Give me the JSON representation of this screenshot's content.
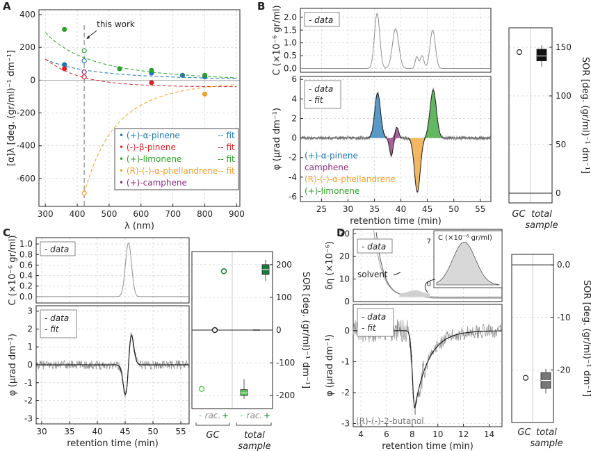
{
  "colors": {
    "a_pinene": "#1f77b4",
    "b_pinene": "#d62728",
    "limonene": "#2ca02c",
    "phellandrene": "#f0a030",
    "camphene": "#8e2b7a",
    "data_trace": "#909090",
    "fit_trace": "#222222",
    "box_dark": "#111111",
    "box_gray": "#777777",
    "green_dark": "#1d7a3a",
    "green_light": "#5cc55c"
  },
  "panels": {
    "A": {
      "letter": "A"
    },
    "B": {
      "letter": "B"
    },
    "C": {
      "letter": "C"
    },
    "D": {
      "letter": "D"
    }
  },
  "chart_data": [
    {
      "panel": "A",
      "type": "scatter",
      "xlabel": "λ (nm)",
      "ylabel": "[α]λ [deg. (gr/ml)⁻¹ dm⁻¹]",
      "xlim": [
        280,
        910
      ],
      "ylim": [
        -770,
        430
      ],
      "xticks": [
        300,
        400,
        500,
        600,
        700,
        800,
        900
      ],
      "yticks": [
        -600,
        -400,
        -200,
        0,
        200,
        400
      ],
      "grid": true,
      "annotation": "this work",
      "annotation_x": 422,
      "legend_position": "bottom-right",
      "legend_fit_label": "-- fit",
      "series": [
        {
          "name": "(+)-α-pinene",
          "color_key": "a_pinene",
          "fit": [
            422,
            300
          ],
          "points": [
            [
              360,
              95
            ],
            [
              422,
              118
            ],
            [
              633,
              44
            ],
            [
              730,
              30
            ],
            [
              800,
              20
            ]
          ],
          "open_index": 1
        },
        {
          "name": "(-)-β-pinene",
          "color_key": "b_pinene",
          "fit": [
            422,
            200
          ],
          "points": [
            [
              360,
              70
            ],
            [
              422,
              20
            ],
            [
              633,
              -15
            ]
          ],
          "open_index": 1
        },
        {
          "name": "(+)-limonene",
          "color_key": "limonene",
          "fit": [
            422,
            420
          ],
          "points": [
            [
              360,
              310
            ],
            [
              422,
              180
            ],
            [
              533,
              70
            ],
            [
              633,
              60
            ],
            [
              800,
              30
            ]
          ],
          "open_index": 1
        },
        {
          "name": "(R)-(-)-α-phellandrene",
          "color_key": "phellandrene",
          "fit": [
            422,
            300
          ],
          "points": [
            [
              422,
              -690
            ],
            [
              800,
              -85
            ]
          ],
          "open_index": 0
        },
        {
          "name": "(+)-camphene",
          "color_key": "camphene",
          "points": [
            [
              422,
              50
            ]
          ],
          "open_index": 0
        }
      ]
    },
    {
      "panel": "B-top",
      "type": "line",
      "ylabel": "C (×10⁻⁶ gr/ml)",
      "xlim": [
        21,
        57
      ],
      "ylim": [
        -0.15,
        2.35
      ],
      "yticks": [
        0.0,
        0.5,
        1.0,
        1.5,
        2.0
      ],
      "legend": "- data",
      "peaks": [
        [
          35.5,
          2.15,
          0.5
        ],
        [
          39.0,
          1.55,
          0.6
        ],
        [
          43.0,
          0.45,
          0.3
        ],
        [
          44.0,
          0.5,
          0.35
        ],
        [
          46.0,
          1.5,
          0.5
        ]
      ]
    },
    {
      "panel": "B-bottom",
      "type": "line",
      "xlabel": "retention time (min)",
      "ylabel": "φ (μrad dm⁻¹)",
      "xlim": [
        21,
        57
      ],
      "ylim": [
        -6.5,
        6.3
      ],
      "xticks": [
        25,
        30,
        35,
        40,
        45,
        50,
        55
      ],
      "yticks": [
        -6,
        -4,
        -2,
        0,
        2,
        4,
        6
      ],
      "legend": [
        "- data",
        "- fit"
      ],
      "peaks": [
        {
          "name": "(+)-α-pinene",
          "center": 35.6,
          "height": 4.6,
          "width": 0.55,
          "color_key": "a_pinene"
        },
        {
          "name": "camphene",
          "center": 38.2,
          "height": -1.8,
          "width": 0.35,
          "color_key": "camphene"
        },
        {
          "name": "camphene",
          "center": 39.2,
          "height": 1.1,
          "width": 0.35,
          "color_key": "camphene"
        },
        {
          "name": "(R)-(-)-α-phellandrene",
          "center": 43.1,
          "height": -5.5,
          "width": 0.55,
          "color_key": "phellandrene"
        },
        {
          "name": "(+)-limonene",
          "center": 46.1,
          "height": 4.9,
          "width": 0.6,
          "color_key": "limonene"
        }
      ],
      "labels": [
        "(+)-α-pinene",
        "camphene",
        "(R)-(-)-α-phellandrene",
        "(+)-limonene"
      ]
    },
    {
      "panel": "B-SOR",
      "type": "box",
      "ylabel": "SOR [deg. (gr/ml)⁻¹ dm⁻¹]",
      "ylim": [
        -10,
        170
      ],
      "yticks": [
        0,
        50,
        100,
        150
      ],
      "categories": [
        "GC",
        "total sample"
      ],
      "gc_point": 145,
      "box": {
        "min": 130,
        "q1": 136,
        "median": 141,
        "q3": 148,
        "max": 152
      }
    },
    {
      "panel": "C-top",
      "type": "line",
      "ylabel": "C (×10⁻⁶ gr/ml)",
      "xlim": [
        29,
        56.5
      ],
      "ylim": [
        -0.12,
        1.12
      ],
      "yticks": [
        0.0,
        0.2,
        0.4,
        0.6,
        0.8,
        1.0
      ],
      "legend": "- data",
      "peak": [
        45.6,
        1.02,
        0.55
      ]
    },
    {
      "panel": "C-bottom",
      "type": "line",
      "xlabel": "retention time (min)",
      "ylabel": "φ (μrad dm⁻¹)",
      "xlim": [
        29,
        56.5
      ],
      "ylim": [
        -3.3,
        3.3
      ],
      "xticks": [
        30,
        35,
        40,
        45,
        50,
        55
      ],
      "yticks": [
        -3,
        -2,
        -1,
        0,
        1,
        2,
        3
      ],
      "legend": [
        "- data",
        "- fit"
      ],
      "feature": {
        "center": 45.6,
        "amplitude": 1.6
      }
    },
    {
      "panel": "C-SOR",
      "type": "box",
      "ylabel": "SOR [deg. (gr/ml)⁻¹ dm⁻¹]",
      "ylim": [
        -240,
        240
      ],
      "yticks": [
        -200,
        -100,
        0,
        100,
        200
      ],
      "gc_points": {
        "minus": -180,
        "rac": 0,
        "plus": 180
      },
      "total_minus": {
        "min": -210,
        "q1": -200,
        "median": -192,
        "q3": -182,
        "max": -150
      },
      "total_rac": 0,
      "total_plus": {
        "min": 150,
        "q1": 170,
        "median": 185,
        "q3": 200,
        "max": 215
      },
      "tick_labels": [
        "-",
        "rac.",
        "+"
      ],
      "categories": [
        "GC",
        "total sample"
      ]
    },
    {
      "panel": "D-top",
      "type": "line",
      "ylabel": "δη (×10⁻⁶)",
      "xlim": [
        3.4,
        15
      ],
      "ylim": [
        0,
        32
      ],
      "yticks": [
        0,
        10,
        20,
        30
      ],
      "legend": "- data",
      "annotation": "solvent",
      "inset": {
        "ylabel": "C (×10⁻⁶ gr/ml)",
        "yticks": [
          0,
          7
        ],
        "peak": [
          8.2,
          6.8,
          0.9
        ]
      }
    },
    {
      "panel": "D-bottom",
      "type": "line",
      "xlabel": "retention time (min)",
      "ylabel": "φ (μrad dm⁻¹)",
      "xlim": [
        3.4,
        15
      ],
      "ylim": [
        -3.1,
        0.85
      ],
      "xticks": [
        4,
        6,
        8,
        10,
        12,
        14
      ],
      "yticks": [
        -3,
        -2,
        -1,
        0
      ],
      "legend": [
        "- data",
        "- fit"
      ],
      "compound": "(R)-(-)-2-butanol",
      "feature": {
        "center": 8.2,
        "min": -2.5
      }
    },
    {
      "panel": "D-SOR",
      "type": "box",
      "ylabel": "SOR [deg. (gr/ml)⁻¹ dm⁻¹]",
      "ylim": [
        -30,
        2
      ],
      "yticks": [
        0.0,
        -10,
        -20
      ],
      "tick_labels": [
        "0.0",
        "-10",
        "-20"
      ],
      "gc_point": -21.5,
      "box": {
        "min": -24.5,
        "q1": -23.5,
        "median": -22.0,
        "q3": -20.5,
        "max": -19.8
      },
      "categories": [
        "GC",
        "total sample"
      ]
    }
  ]
}
